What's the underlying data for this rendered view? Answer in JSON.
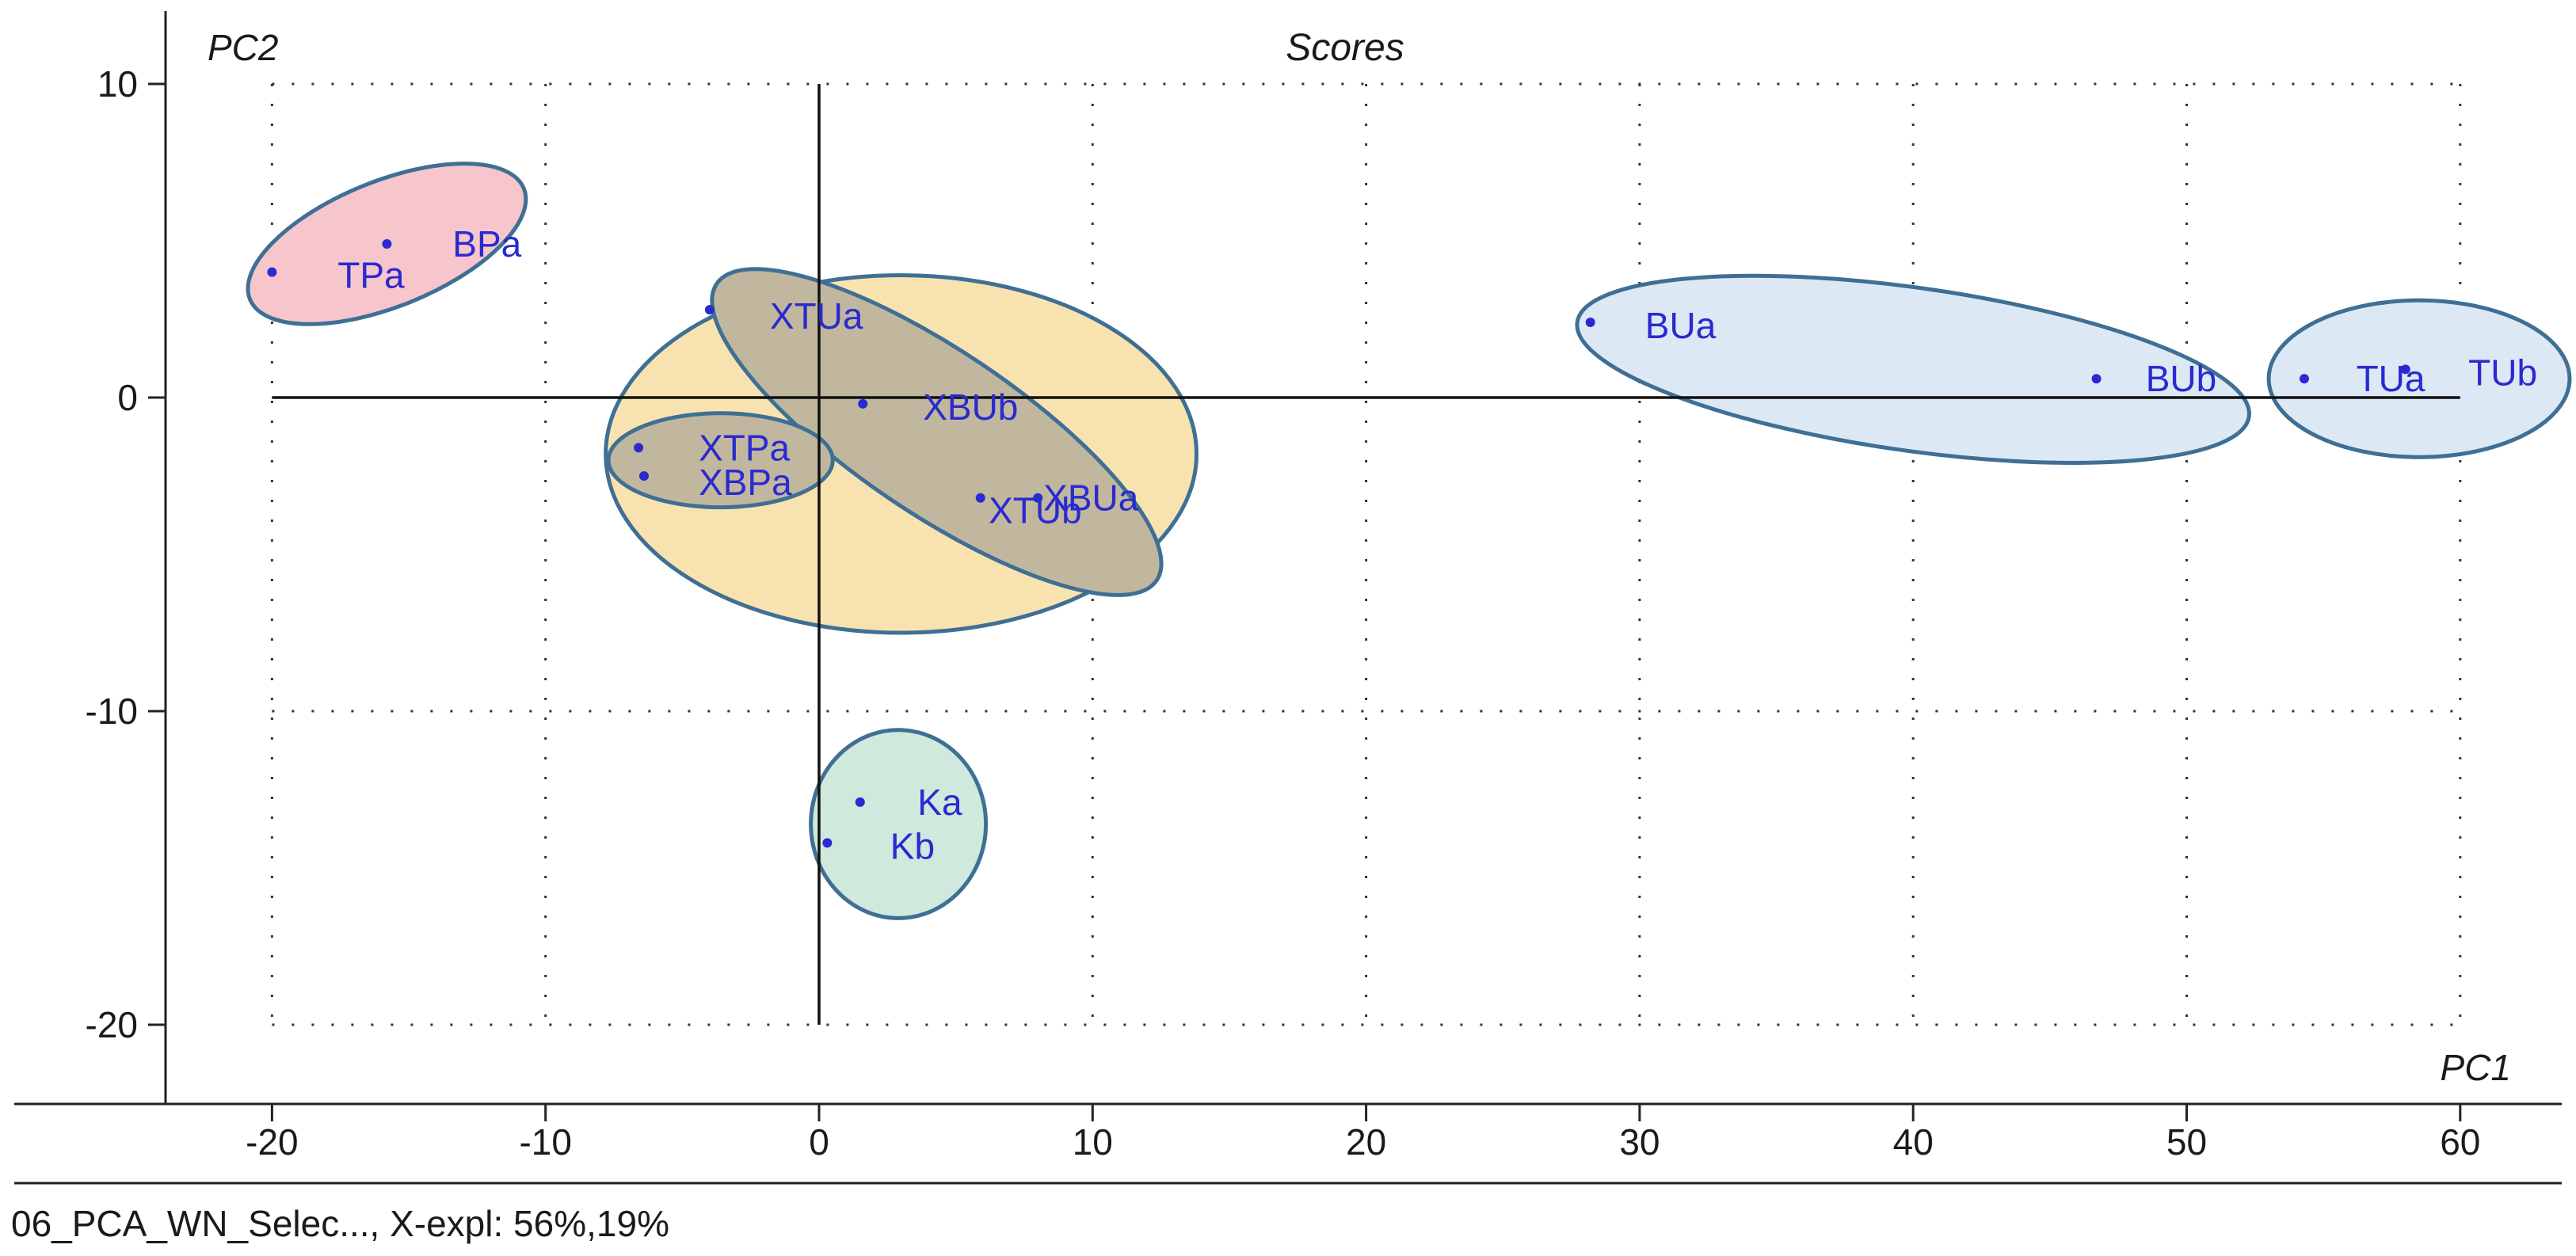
{
  "status_bar": {
    "text": "06_PCA_WN_Selec..., X-expl: 56%,19%"
  },
  "chart_data": {
    "type": "scatter",
    "title": "Scores",
    "xlabel": "PC1",
    "ylabel": "PC2",
    "xlim": [
      -24,
      63
    ],
    "ylim": [
      -23,
      12
    ],
    "xticks": [
      -20,
      -10,
      0,
      10,
      20,
      30,
      40,
      50,
      60
    ],
    "yticks": [
      10,
      0,
      -10,
      -20
    ],
    "grid": true,
    "points": [
      {
        "label": "TPa",
        "x": -20.0,
        "y": 4.0,
        "label_x": -17.6,
        "label_y": 3.9
      },
      {
        "label": "BPa",
        "x": -15.8,
        "y": 4.9,
        "label_x": -13.4,
        "label_y": 4.9
      },
      {
        "label": "XTUa",
        "x": -4.0,
        "y": 2.8,
        "label_x": -1.8,
        "label_y": 2.6
      },
      {
        "label": "XBUb",
        "x": 1.6,
        "y": -0.2,
        "label_x": 3.8,
        "label_y": -0.3
      },
      {
        "label": "XTPa",
        "x": -6.6,
        "y": -1.6,
        "label_x": -4.4,
        "label_y": -1.6
      },
      {
        "label": "XBPa",
        "x": -6.4,
        "y": -2.5,
        "label_x": -4.4,
        "label_y": -2.7
      },
      {
        "label": "XBUa",
        "x": 8.0,
        "y": -3.2,
        "label_x": 8.2,
        "label_y": -3.2
      },
      {
        "label": "XTUb",
        "x": 5.9,
        "y": -3.2,
        "label_x": 6.2,
        "label_y": -3.6
      },
      {
        "label": "BUa",
        "x": 28.2,
        "y": 2.4,
        "label_x": 30.2,
        "label_y": 2.3
      },
      {
        "label": "BUb",
        "x": 46.7,
        "y": 0.6,
        "label_x": 48.5,
        "label_y": 0.6
      },
      {
        "label": "TUa",
        "x": 54.3,
        "y": 0.6,
        "label_x": 56.2,
        "label_y": 0.6
      },
      {
        "label": "TUb",
        "x": 58.0,
        "y": 0.9,
        "label_x": 60.3,
        "label_y": 0.8
      },
      {
        "label": "Ka",
        "x": 1.5,
        "y": -12.9,
        "label_x": 3.6,
        "label_y": -12.9
      },
      {
        "label": "Kb",
        "x": 0.3,
        "y": -14.2,
        "label_x": 2.6,
        "label_y": -14.3
      }
    ],
    "groups": [
      {
        "name": "group-xcenter",
        "cx": 3.0,
        "cy": -1.8,
        "rx": 10.8,
        "ry": 5.7,
        "angle": 0,
        "fill": "#f8e3b0"
      },
      {
        "name": "group-tp-bp",
        "cx": -15.8,
        "cy": 4.9,
        "rx": 5.4,
        "ry": 2.0,
        "angle": -22,
        "fill": "#f6c6cc"
      },
      {
        "name": "group-bu",
        "cx": 40.0,
        "cy": 0.9,
        "rx": 12.4,
        "ry": 2.6,
        "angle": 8,
        "fill": "#dce9f5"
      },
      {
        "name": "group-tu",
        "cx": 58.5,
        "cy": 0.6,
        "rx": 5.5,
        "ry": 2.5,
        "angle": 0,
        "fill": "#dce9f5"
      },
      {
        "name": "group-xtu-xbu",
        "cx": 4.3,
        "cy": -1.1,
        "rx": 9.7,
        "ry": 2.6,
        "angle": 34,
        "fill": "#c1b79e"
      },
      {
        "name": "group-xtp-xbp",
        "cx": -3.6,
        "cy": -2.0,
        "rx": 4.1,
        "ry": 1.5,
        "angle": 0,
        "fill": "#c1b79e"
      },
      {
        "name": "group-k",
        "cx": 2.9,
        "cy": -13.6,
        "rx": 3.2,
        "ry": 3.0,
        "angle": 0,
        "fill": "#cfe9dc"
      }
    ]
  }
}
